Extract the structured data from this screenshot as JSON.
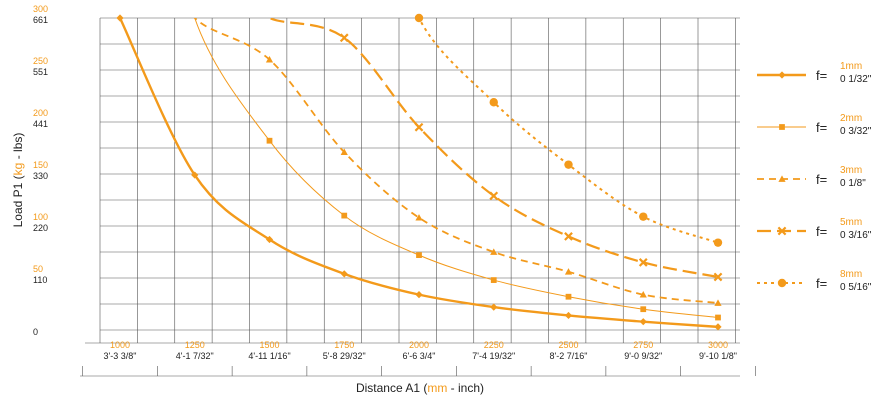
{
  "chart_data": {
    "type": "line",
    "xlabel": {
      "pre": "Distance A1 (",
      "unit1": "mm",
      "sep": " - ",
      "unit2": "inch",
      "post": ")"
    },
    "ylabel": {
      "pre": "Load P1 (",
      "unit1": "kg",
      "sep": " - ",
      "unit2": "lbs",
      "post": ")"
    },
    "x": [
      1000,
      1250,
      1500,
      1750,
      2000,
      2250,
      2500,
      2750,
      3000
    ],
    "x_labels_mm": [
      "1000",
      "1250",
      "1500",
      "1750",
      "2000",
      "2250",
      "2500",
      "2750",
      "3000"
    ],
    "x_labels_inch": [
      "3'-3 3/8\"",
      "4'-1 7/32\"",
      "4'-11 1/16\"",
      "5'-8 29/32\"",
      "6'-6 3/4\"",
      "7'-4 19/32\"",
      "8'-2 7/16\"",
      "9'-0 9/32\"",
      "9'-10 1/8\""
    ],
    "y_ticks": [
      {
        "kg": "300",
        "lbs": "661",
        "value": 300
      },
      {
        "kg": "250",
        "lbs": "551",
        "value": 250
      },
      {
        "kg": "200",
        "lbs": "441",
        "value": 200
      },
      {
        "kg": "150",
        "lbs": "330",
        "value": 150
      },
      {
        "kg": "100",
        "lbs": "220",
        "value": 100
      },
      {
        "kg": "50",
        "lbs": "110",
        "value": 50
      },
      {
        "kg": "",
        "lbs": "0",
        "value": 0
      }
    ],
    "ylim": [
      0,
      300
    ],
    "xlim": [
      1000,
      3000
    ],
    "grid": true,
    "legend_position": "right",
    "colors": {
      "series": "#f39a1b",
      "accent_text": "#f39a1b",
      "text": "#222222",
      "grid": "#555555"
    },
    "series": [
      {
        "name_prefix": "f=",
        "name_mm": "1mm",
        "name_inch": "0 1/32\"",
        "style": "thick",
        "marker": "diamond",
        "x": [
          1000,
          1250,
          1500,
          1750,
          2000,
          2250,
          2500,
          2750,
          3000
        ],
        "values": [
          300,
          149,
          87,
          54,
          34,
          22,
          14,
          8,
          3
        ]
      },
      {
        "name_prefix": "f=",
        "name_mm": "2mm",
        "name_inch": "0 3/32\"",
        "style": "thin",
        "marker": "square",
        "x": [
          1000,
          1250,
          1500,
          1750,
          2000,
          2250,
          2500,
          2750,
          3000
        ],
        "values": [
          300,
          300,
          182,
          110,
          72,
          48,
          32,
          20,
          12
        ]
      },
      {
        "name_prefix": "f=",
        "name_mm": "3mm",
        "name_inch": "0 1/8\"",
        "style": "dash",
        "marker": "triangle",
        "x": [
          1000,
          1250,
          1500,
          1750,
          2000,
          2250,
          2500,
          2750,
          3000
        ],
        "values": [
          300,
          300,
          260,
          171,
          108,
          75,
          56,
          34,
          26
        ]
      },
      {
        "name_prefix": "f=",
        "name_mm": "5mm",
        "name_inch": "0 3/16\"",
        "style": "longdash",
        "marker": "x",
        "x": [
          1000,
          1250,
          1500,
          1750,
          2000,
          2250,
          2500,
          2750,
          3000
        ],
        "values": [
          300,
          300,
          300,
          281,
          195,
          129,
          90,
          65,
          51
        ]
      },
      {
        "name_prefix": "f=",
        "name_mm": "8mm",
        "name_inch": "0 5/16\"",
        "style": "dot",
        "marker": "plus",
        "x": [
          1000,
          1250,
          1500,
          1750,
          2000,
          2250,
          2500,
          2750,
          3000
        ],
        "values": [
          300,
          300,
          300,
          300,
          300,
          219,
          159,
          109,
          84
        ]
      }
    ]
  }
}
